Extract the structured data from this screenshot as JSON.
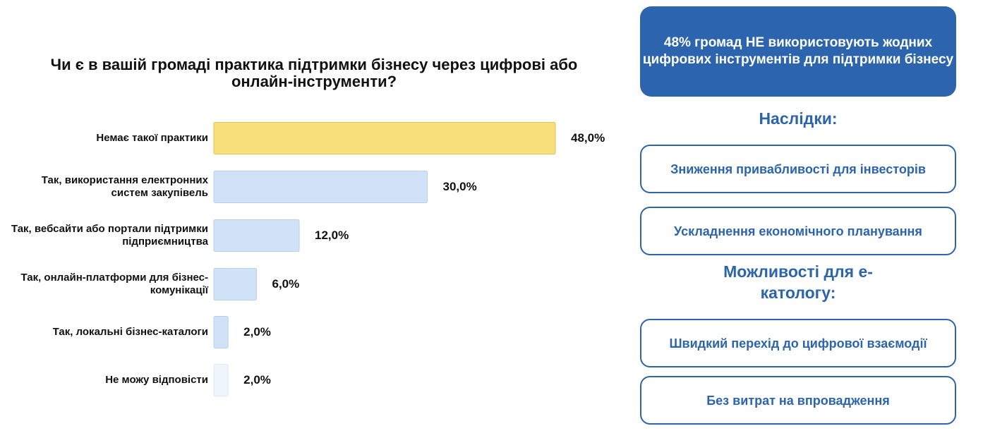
{
  "colors": {
    "accent": "#2c64ad",
    "bar_highlight": "#f8df7b",
    "bar_default": "#cfe2f7",
    "bar_light": "#eef5fd"
  },
  "chart_data": {
    "type": "bar",
    "orientation": "horizontal",
    "title": "Чи є в вашій громаді практика підтримки бізнесу через цифрові або онлайн-інструменти?",
    "categories": [
      "Немає такої практики",
      "Так, використання електронних систем закупівель",
      "Так, вебсайти або портали підтримки підприємництва",
      "Так, онлайн-платформи для бізнес-комунікації",
      "Так, локальні бізнес-каталоги",
      "Не можу відповісти"
    ],
    "values": [
      48.0,
      30.0,
      12.0,
      6.0,
      2.0,
      2.0
    ],
    "value_labels": [
      "48,0%",
      "30,0%",
      "12,0%",
      "6,0%",
      "2,0%",
      "2,0%"
    ],
    "unit": "%",
    "xlim": [
      0,
      48
    ],
    "grid": false,
    "legend": "none"
  },
  "callout": "48% громад НЕ використовують жодних цифрових інструментів для підтримки бізнесу",
  "consequences": {
    "title": "Наслідки:",
    "items": [
      "Зниження привабливості для інвесторів",
      "Ускладнення економічного планування"
    ]
  },
  "opportunities": {
    "title": "Можливості для е-катологу:",
    "items": [
      "Швидкий перехід до цифрової взаємодії",
      "Без витрат на впровадження"
    ]
  }
}
